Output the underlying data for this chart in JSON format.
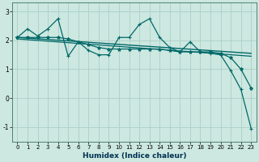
{
  "xlabel": "Humidex (Indice chaleur)",
  "xlim": [
    -0.5,
    23.5
  ],
  "ylim": [
    -1.5,
    3.3
  ],
  "yticks": [
    -1,
    0,
    1,
    2,
    3
  ],
  "xticks": [
    0,
    1,
    2,
    3,
    4,
    5,
    6,
    7,
    8,
    9,
    10,
    11,
    12,
    13,
    14,
    15,
    16,
    17,
    18,
    19,
    20,
    21,
    22,
    23
  ],
  "bg_color": "#cce8e0",
  "grid_color": "#aad0c8",
  "line_color": "#006868",
  "series": [
    {
      "x": [
        0,
        1,
        2,
        3,
        4,
        5,
        6,
        7,
        8,
        9,
        10,
        11,
        12,
        13,
        14,
        15,
        16,
        17,
        18,
        19,
        20,
        21,
        22,
        23
      ],
      "y": [
        2.1,
        2.4,
        2.15,
        2.4,
        2.75,
        1.45,
        1.95,
        1.65,
        1.5,
        1.5,
        2.1,
        2.1,
        2.55,
        2.75,
        2.1,
        1.75,
        1.6,
        1.95,
        1.6,
        1.55,
        1.5,
        0.95,
        0.3,
        -1.05
      ],
      "marker": "+",
      "markersize": 3.5,
      "linewidth": 0.9,
      "linestyle": "-"
    },
    {
      "x": [
        0,
        23
      ],
      "y": [
        2.1,
        1.55
      ],
      "marker": null,
      "markersize": 0,
      "linewidth": 1.0,
      "linestyle": "-"
    },
    {
      "x": [
        0,
        23
      ],
      "y": [
        2.05,
        1.45
      ],
      "marker": null,
      "markersize": 0,
      "linewidth": 0.9,
      "linestyle": "-"
    },
    {
      "x": [
        0,
        1,
        2,
        3,
        4,
        5,
        6,
        7,
        8,
        9,
        10,
        11,
        12,
        13,
        14,
        15,
        16,
        17,
        18,
        19,
        20,
        21,
        22,
        23
      ],
      "y": [
        2.1,
        2.1,
        2.1,
        2.1,
        2.1,
        2.05,
        1.95,
        1.85,
        1.75,
        1.7,
        1.7,
        1.7,
        1.7,
        1.7,
        1.7,
        1.65,
        1.6,
        1.6,
        1.6,
        1.6,
        1.55,
        1.4,
        1.0,
        0.35
      ],
      "marker": "*",
      "markersize": 3.0,
      "linewidth": 0.9,
      "linestyle": "-"
    }
  ]
}
